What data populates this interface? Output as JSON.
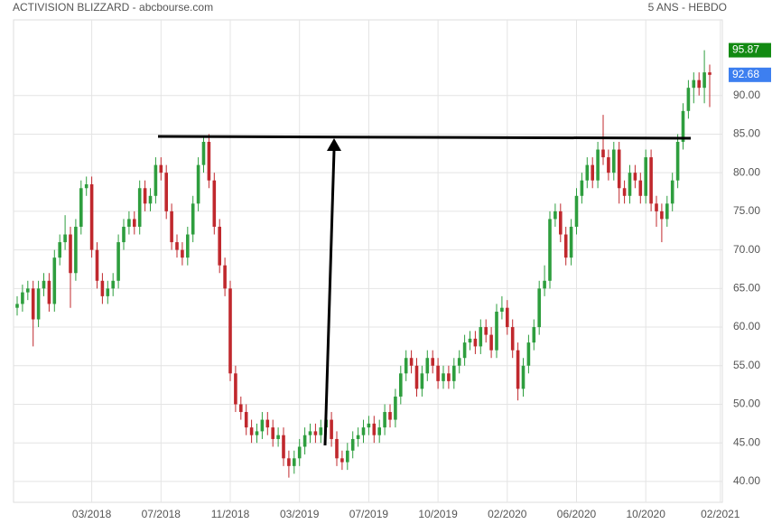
{
  "chart_data": {
    "type": "candlestick",
    "title": "ACTIVISION BLIZZARD - abcbourse.com",
    "subtitle": "5 ANS - HEBDO",
    "categories": [
      null,
      null,
      null,
      null,
      null,
      null,
      null,
      null,
      null,
      null,
      null,
      null,
      null,
      null,
      "03/2018",
      null,
      null,
      null,
      null,
      null,
      null,
      null,
      null,
      null,
      null,
      null,
      null,
      "07/2018",
      null,
      null,
      null,
      null,
      null,
      null,
      null,
      null,
      null,
      null,
      null,
      null,
      "11/2018",
      null,
      null,
      null,
      null,
      null,
      null,
      null,
      null,
      null,
      null,
      null,
      null,
      "03/2019",
      null,
      null,
      null,
      null,
      null,
      null,
      null,
      null,
      null,
      null,
      null,
      null,
      "07/2019",
      null,
      null,
      null,
      null,
      null,
      null,
      null,
      null,
      null,
      null,
      null,
      null,
      "10/2019",
      null,
      null,
      null,
      null,
      null,
      null,
      null,
      null,
      null,
      null,
      null,
      null,
      "02/2020",
      null,
      null,
      null,
      null,
      null,
      null,
      null,
      null,
      null,
      null,
      null,
      null,
      "06/2020",
      null,
      null,
      null,
      null,
      null,
      null,
      null,
      null,
      null,
      null,
      null,
      null,
      "10/2020",
      null,
      null,
      null,
      null,
      null,
      null,
      null,
      null,
      null,
      null,
      null,
      null,
      null,
      "02/2021"
    ],
    "open": [
      62.5,
      63,
      64.5,
      65,
      61,
      65,
      66,
      63,
      69,
      71,
      72,
      67,
      73,
      78,
      78.5,
      70,
      66,
      64,
      65,
      66,
      71,
      73,
      74,
      73,
      78,
      76,
      77,
      81,
      80,
      75,
      71,
      70,
      69,
      72,
      76,
      81,
      84,
      79,
      73,
      68,
      65,
      54,
      50,
      49,
      47,
      46,
      46.5,
      48,
      47,
      45.5,
      46,
      43,
      42,
      43,
      44.5,
      46,
      46.5,
      46,
      47,
      48,
      45.5,
      43,
      42.5,
      44,
      45.5,
      46,
      47,
      47.5,
      46,
      47,
      49,
      48,
      51,
      54,
      56,
      55,
      52,
      54,
      56,
      55,
      53,
      54,
      53,
      55,
      56,
      58,
      58.5,
      57.5,
      60,
      59,
      57,
      62,
      62.5,
      60,
      57,
      52,
      55,
      58,
      60,
      65,
      66,
      74,
      75,
      72,
      69,
      73,
      77,
      79,
      81,
      79,
      83,
      82,
      80,
      83,
      78,
      77,
      80,
      79,
      77,
      82,
      76,
      75,
      74,
      76,
      79,
      84,
      88,
      91,
      92,
      91,
      93,
      null,
      null
    ],
    "high": [
      64,
      65.5,
      66,
      66,
      66,
      67,
      67,
      70,
      72,
      74.5,
      73,
      74,
      79,
      79.5,
      79.5,
      71,
      67,
      66,
      67,
      72,
      74,
      75,
      75,
      79,
      79,
      78,
      82,
      82,
      81,
      76,
      72,
      71,
      73,
      77,
      82,
      84.8,
      85,
      80,
      74,
      69,
      66,
      55,
      51,
      50,
      48,
      47.5,
      49,
      49,
      48,
      47,
      47,
      44,
      44,
      45.5,
      47,
      47.5,
      47.5,
      48,
      49,
      49,
      46.5,
      44,
      45,
      46.5,
      47,
      48,
      48.5,
      48.5,
      48,
      50,
      50,
      52,
      55,
      57,
      57,
      56,
      55,
      57,
      57,
      56,
      55,
      55,
      56,
      57,
      59,
      59.5,
      59.5,
      61,
      61,
      60,
      63,
      64,
      63.5,
      61,
      58,
      56,
      59,
      61,
      66,
      68,
      75,
      76,
      76,
      73,
      74,
      78,
      80,
      82,
      82,
      84,
      87.5,
      83,
      84,
      84,
      79,
      81,
      81,
      80,
      83,
      83,
      77,
      76,
      77,
      80,
      85,
      89,
      92,
      93,
      93,
      95.87,
      94,
      null,
      null
    ],
    "low": [
      61.5,
      62,
      63.5,
      57.5,
      60,
      64,
      62,
      62,
      68,
      70,
      62.5,
      66,
      72,
      77,
      69,
      65,
      63,
      63,
      64,
      65,
      70,
      72,
      72,
      72,
      75,
      75,
      76,
      79,
      74,
      70,
      69,
      68,
      68,
      71,
      75,
      80,
      78,
      72,
      67,
      64,
      53,
      49,
      48,
      46,
      45,
      45,
      45.5,
      46,
      44.5,
      44.5,
      42,
      40.5,
      41,
      42,
      43.5,
      45,
      45,
      45,
      46,
      44.5,
      42,
      41.5,
      41.5,
      43,
      44.5,
      45,
      46,
      45,
      45,
      46,
      47,
      47,
      50,
      53,
      54,
      51,
      51,
      53,
      54,
      52,
      52,
      52,
      52,
      54,
      55,
      57,
      56.5,
      56.5,
      58,
      56,
      56,
      61,
      59,
      56,
      50.5,
      51,
      54,
      57,
      59,
      64,
      65,
      73,
      71,
      68,
      68,
      72,
      76,
      78,
      78,
      78,
      81,
      79,
      79,
      76,
      76,
      76,
      78,
      76,
      76,
      75,
      73,
      71,
      73,
      75,
      78,
      83,
      87,
      89,
      90,
      89,
      88.5,
      null,
      null
    ],
    "close": [
      63,
      64.5,
      65,
      61,
      65,
      66,
      63,
      69,
      71,
      72,
      67,
      73,
      78,
      78.5,
      70,
      66,
      64,
      65,
      66,
      71,
      73,
      74,
      73,
      78,
      76,
      77,
      81,
      80,
      75,
      71,
      70,
      69,
      72,
      76,
      81,
      84,
      79,
      73,
      68,
      65,
      54,
      50,
      49,
      47,
      46,
      46.5,
      48,
      47,
      45.5,
      46,
      43,
      42,
      43,
      44.5,
      46,
      46.5,
      46,
      47,
      48,
      45.5,
      43,
      42.5,
      44,
      45.5,
      46,
      47,
      47.5,
      46,
      47,
      49,
      48,
      51,
      54,
      56,
      55,
      52,
      54,
      56,
      55,
      53,
      54,
      53,
      55,
      56,
      58,
      58.5,
      57.5,
      60,
      59,
      57,
      62,
      62.5,
      60,
      57,
      52,
      55,
      58,
      60,
      65,
      66,
      74,
      75,
      72,
      69,
      73,
      77,
      79,
      81,
      79,
      83,
      82,
      80,
      83,
      78,
      77,
      80,
      79,
      77,
      82,
      76,
      75,
      74,
      76,
      79,
      84,
      88,
      91,
      92,
      91,
      93,
      92.68,
      null,
      null
    ],
    "up_color": "#2e9e3e",
    "down_color": "#c0282d",
    "ylim": [
      37.3,
      99.8
    ],
    "yticks": [
      {
        "value": 40,
        "label": "40.00"
      },
      {
        "value": 45,
        "label": "45.00"
      },
      {
        "value": 50,
        "label": "50.00"
      },
      {
        "value": 55,
        "label": "55.00"
      },
      {
        "value": 60,
        "label": "60.00"
      },
      {
        "value": 65,
        "label": "65.00"
      },
      {
        "value": 70,
        "label": "70.00"
      },
      {
        "value": 75,
        "label": "75.00"
      },
      {
        "value": 80,
        "label": "80.00"
      },
      {
        "value": 85,
        "label": "85.00"
      },
      {
        "value": 90,
        "label": "90.00"
      }
    ],
    "grid": true,
    "price_markers": [
      {
        "value": 95.87,
        "label": "95.87",
        "color": "#128a12"
      },
      {
        "value": 92.68,
        "label": "92.68",
        "color": "#3d7ff0"
      }
    ]
  }
}
